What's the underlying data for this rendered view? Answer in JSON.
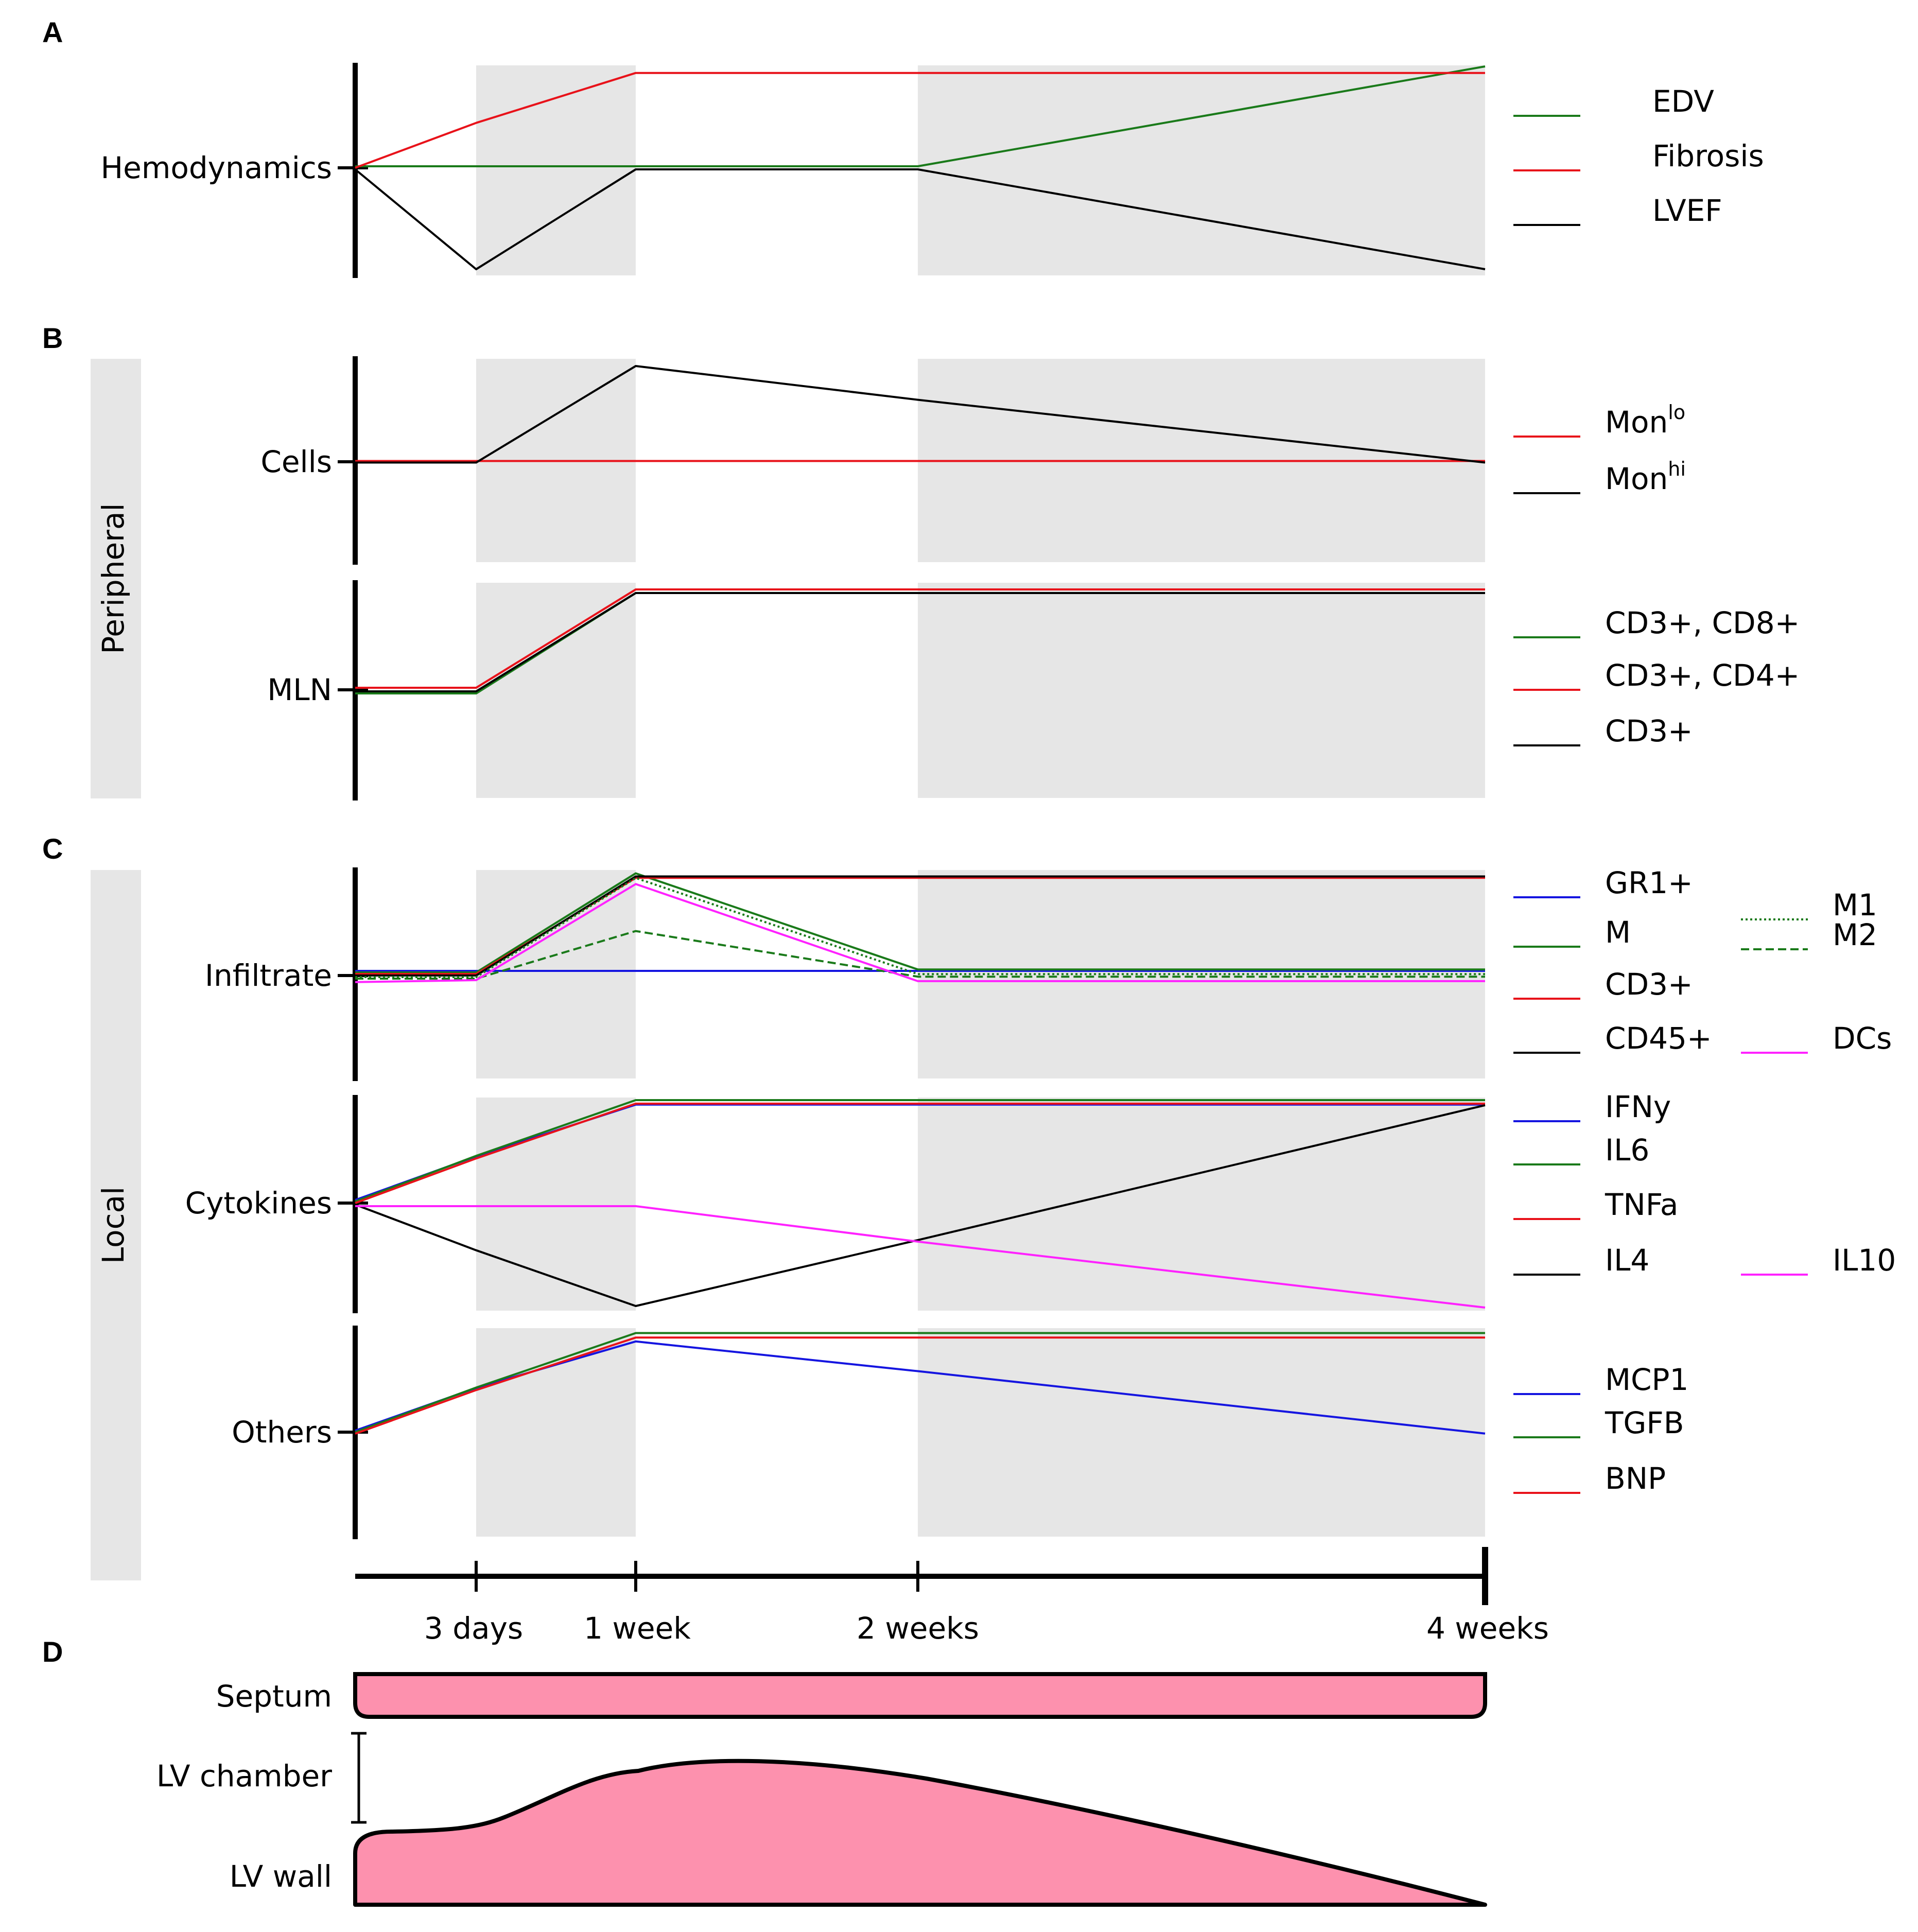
{
  "panels": {
    "a": "A",
    "b": "B",
    "c": "C",
    "d": "D"
  },
  "side_labels": {
    "peripheral": "Peripheral",
    "local": "Local"
  },
  "time_axis": {
    "ticks": [
      "3 days",
      "1 week",
      "2 weeks",
      "4 weeks"
    ]
  },
  "chart_data": [
    {
      "type": "line",
      "panel": "A",
      "row_label": "Hemodynamics",
      "x": [
        "0",
        "3 days",
        "1 week",
        "2 weeks",
        "4 weeks"
      ],
      "ylim": [
        -1,
        1
      ],
      "series": [
        {
          "name": "EDV",
          "color": "#1a7a1a",
          "values": [
            0,
            0,
            0,
            0,
            1.0
          ]
        },
        {
          "name": "Fibrosis",
          "color": "#e8121a",
          "values": [
            0,
            0.45,
            0.95,
            0.95,
            0.95
          ]
        },
        {
          "name": "LVEF",
          "color": "#000000",
          "values": [
            0,
            -1.0,
            0,
            0,
            -1.0
          ]
        }
      ]
    },
    {
      "type": "line",
      "panel": "B",
      "row_label": "Cells",
      "x": [
        "0",
        "3 days",
        "1 week",
        "2 weeks",
        "4 weeks"
      ],
      "ylim": [
        -1,
        1
      ],
      "series": [
        {
          "name": "Mon",
          "sup": "lo",
          "color": "#e8121a",
          "values": [
            0,
            0,
            0,
            0,
            0
          ]
        },
        {
          "name": "Mon",
          "sup": "hi",
          "color": "#000000",
          "values": [
            0,
            0,
            1.0,
            0.65,
            0
          ]
        }
      ]
    },
    {
      "type": "line",
      "panel": "B",
      "row_label": "MLN",
      "x": [
        "0",
        "3 days",
        "1 week",
        "2 weeks",
        "4 weeks"
      ],
      "ylim": [
        -1,
        1
      ],
      "series": [
        {
          "name": "CD3+, CD8+",
          "color": "#1a7a1a",
          "values": [
            -0.05,
            -0.05,
            0.93,
            0.93,
            null
          ]
        },
        {
          "name": "CD3+, CD4+",
          "color": "#e8121a",
          "values": [
            0.02,
            0.02,
            0.98,
            0.98,
            0.98
          ]
        },
        {
          "name": "CD3+",
          "color": "#000000",
          "values": [
            0,
            0,
            0.96,
            0.96,
            0.96
          ]
        }
      ]
    },
    {
      "type": "line",
      "panel": "C",
      "row_label": "Infiltrate",
      "x": [
        "0",
        "3 days",
        "1 week",
        "2 weeks",
        "4 weeks"
      ],
      "ylim": [
        -1,
        1
      ],
      "series": [
        {
          "name": "GR1+",
          "color": "#1515e0",
          "values": [
            0,
            0,
            0,
            0,
            0
          ]
        },
        {
          "name": "M",
          "color": "#1a7a1a",
          "values": [
            0,
            0,
            1.0,
            0.03,
            0.03
          ]
        },
        {
          "name": "CD3+",
          "color": "#e8121a",
          "values": [
            0,
            0,
            0.97,
            0.97,
            0.97
          ]
        },
        {
          "name": "CD45+",
          "color": "#000000",
          "values": [
            0,
            0,
            1.0,
            1.0,
            1.0
          ]
        },
        {
          "name": "M1",
          "color": "#1a7a1a",
          "dash": "dotted",
          "values": [
            0,
            0,
            1.0,
            0.03,
            0.03
          ]
        },
        {
          "name": "M2",
          "color": "#1a7a1a",
          "dash": "dashed",
          "values": [
            0,
            0,
            0.48,
            0.02,
            0.02
          ]
        },
        {
          "name": "DCs",
          "color": "#ff22ff",
          "values": [
            -0.02,
            0,
            0.97,
            -0.01,
            -0.01
          ]
        }
      ]
    },
    {
      "type": "line",
      "panel": "C",
      "row_label": "Cytokines",
      "x": [
        "0",
        "3 days",
        "1 week",
        "2 weeks",
        "4 weeks"
      ],
      "ylim": [
        -1,
        1
      ],
      "series": [
        {
          "name": "IFNy",
          "color": "#1515e0",
          "values": [
            0,
            0.43,
            0.94,
            0.94,
            0.94
          ]
        },
        {
          "name": "IL6",
          "color": "#1a7a1a",
          "values": [
            0,
            0.45,
            1.0,
            1.0,
            1.0
          ]
        },
        {
          "name": "TNFa",
          "color": "#e8121a",
          "values": [
            0,
            0.44,
            0.98,
            0.98,
            0.98
          ]
        },
        {
          "name": "IL4",
          "color": "#000000",
          "values": [
            0,
            -0.45,
            -1.0,
            -0.35,
            0.98
          ]
        },
        {
          "name": "IL10",
          "color": "#ff22ff",
          "values": [
            0,
            0,
            0,
            -0.35,
            -1.0
          ]
        }
      ]
    },
    {
      "type": "line",
      "panel": "C",
      "row_label": "Others",
      "x": [
        "0",
        "3 days",
        "1 week",
        "2 weeks",
        "4 weeks"
      ],
      "ylim": [
        -1,
        1
      ],
      "series": [
        {
          "name": "MCP1",
          "color": "#1515e0",
          "values": [
            0,
            0.43,
            0.9,
            0.6,
            -0.03
          ]
        },
        {
          "name": "TGFB",
          "color": "#1a7a1a",
          "values": [
            0,
            0.45,
            1.0,
            1.0,
            1.0
          ]
        },
        {
          "name": "BNP",
          "color": "#e8121a",
          "values": [
            0,
            0.44,
            0.97,
            0.97,
            0.97
          ]
        }
      ]
    }
  ],
  "panel_d": {
    "labels": {
      "septum": "Septum",
      "chamber": "LV chamber",
      "wall": "LV wall"
    },
    "fill_color": "#fd91ae"
  }
}
